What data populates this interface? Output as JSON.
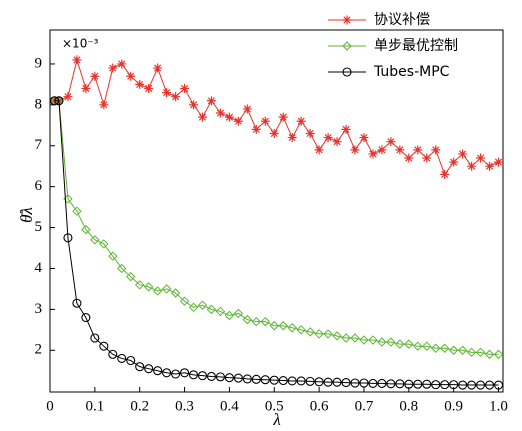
{
  "chart_data": {
    "type": "line",
    "y_label": "θ̄λ",
    "x_label": "λ",
    "multiplier": "×10⁻³",
    "x": [
      0.01,
      0.02,
      0.04,
      0.06,
      0.08,
      0.1,
      0.12,
      0.14,
      0.16,
      0.18,
      0.2,
      0.22,
      0.24,
      0.26,
      0.28,
      0.3,
      0.32,
      0.34,
      0.36,
      0.38,
      0.4,
      0.42,
      0.44,
      0.46,
      0.48,
      0.5,
      0.52,
      0.54,
      0.56,
      0.58,
      0.6,
      0.62,
      0.64,
      0.66,
      0.68,
      0.7,
      0.72,
      0.74,
      0.76,
      0.78,
      0.8,
      0.82,
      0.84,
      0.86,
      0.88,
      0.9,
      0.92,
      0.94,
      0.96,
      0.98,
      1.0
    ],
    "series": [
      {
        "name": "协议补偿",
        "color": "#e8332c",
        "marker": "asterisk",
        "values": [
          8.1,
          8.1,
          8.2,
          9.1,
          8.4,
          8.7,
          8.0,
          8.9,
          9.0,
          8.7,
          8.5,
          8.4,
          8.9,
          8.3,
          8.2,
          8.4,
          8.0,
          7.7,
          8.1,
          7.8,
          7.7,
          7.6,
          7.9,
          7.4,
          7.6,
          7.3,
          7.7,
          7.2,
          7.6,
          7.3,
          6.9,
          7.2,
          7.1,
          7.4,
          6.9,
          7.2,
          6.8,
          6.9,
          7.1,
          6.9,
          6.7,
          6.9,
          6.7,
          6.9,
          6.3,
          6.6,
          6.8,
          6.5,
          6.7,
          6.5,
          6.6
        ]
      },
      {
        "name": "单步最优控制",
        "color": "#5cb531",
        "marker": "diamond",
        "values": [
          8.1,
          8.1,
          5.7,
          5.4,
          4.95,
          4.7,
          4.6,
          4.3,
          4.0,
          3.8,
          3.6,
          3.55,
          3.45,
          3.5,
          3.4,
          3.2,
          3.05,
          3.1,
          3.0,
          2.95,
          2.85,
          2.9,
          2.75,
          2.7,
          2.7,
          2.6,
          2.6,
          2.55,
          2.5,
          2.45,
          2.4,
          2.4,
          2.35,
          2.3,
          2.3,
          2.25,
          2.25,
          2.2,
          2.2,
          2.15,
          2.15,
          2.1,
          2.1,
          2.05,
          2.05,
          2.0,
          2.0,
          1.95,
          1.95,
          1.9,
          1.9
        ]
      },
      {
        "name": "Tubes-MPC",
        "color": "#000000",
        "marker": "circle",
        "values": [
          8.1,
          8.1,
          4.75,
          3.15,
          2.8,
          2.3,
          2.1,
          1.9,
          1.8,
          1.75,
          1.6,
          1.55,
          1.5,
          1.45,
          1.42,
          1.45,
          1.4,
          1.38,
          1.36,
          1.35,
          1.33,
          1.32,
          1.3,
          1.29,
          1.28,
          1.27,
          1.26,
          1.25,
          1.25,
          1.24,
          1.23,
          1.22,
          1.22,
          1.21,
          1.2,
          1.2,
          1.19,
          1.19,
          1.18,
          1.18,
          1.17,
          1.17,
          1.17,
          1.16,
          1.16,
          1.16,
          1.15,
          1.15,
          1.15,
          1.15,
          1.15
        ]
      }
    ],
    "xlim": [
      0,
      1.01
    ],
    "ylim": [
      0.98,
      9.83
    ],
    "xticks": [
      0,
      0.1,
      0.2,
      0.3,
      0.4,
      0.5,
      0.6,
      0.7,
      0.8,
      0.9,
      {
        "value": 1,
        "label": "1.0"
      }
    ],
    "yticks": [
      2,
      3,
      4,
      5,
      6,
      7,
      8,
      9
    ]
  }
}
